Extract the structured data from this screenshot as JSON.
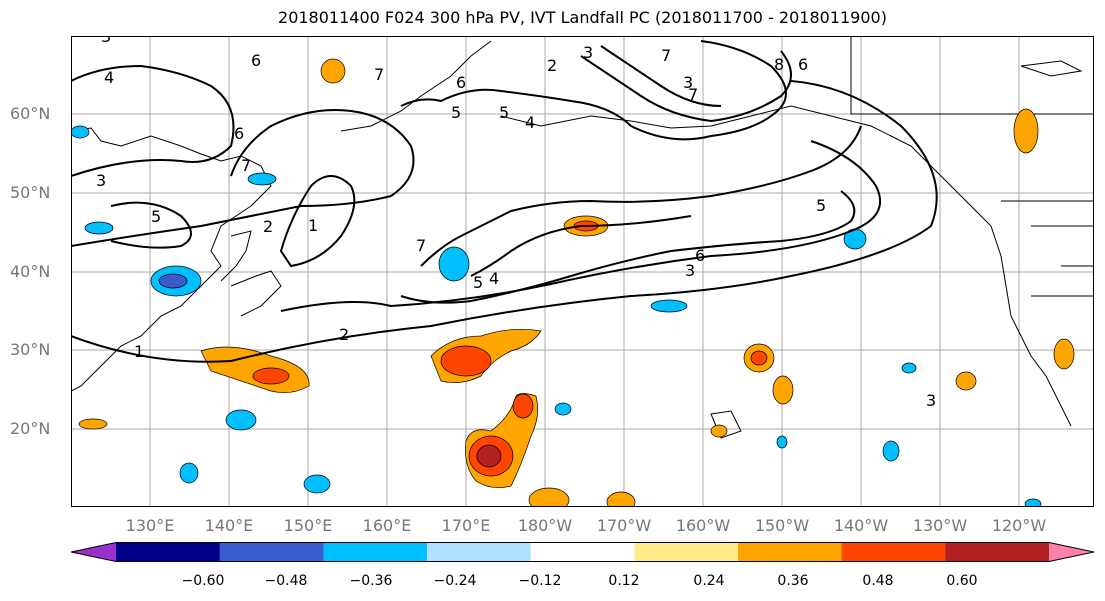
{
  "title": "2018011400 F024 300 hPa PV, IVT Landfall PC (2018011700 - 2018011900)",
  "map": {
    "lat_labels": [
      "60°N",
      "50°N",
      "40°N",
      "30°N",
      "20°N"
    ],
    "lon_labels": [
      "130°E",
      "140°E",
      "150°E",
      "160°E",
      "170°E",
      "180°W",
      "170°W",
      "160°W",
      "150°W",
      "140°W",
      "130°W",
      "120°W"
    ],
    "contour_labels": [
      "3",
      "4",
      "6",
      "7",
      "6",
      "5",
      "5",
      "4",
      "2",
      "3",
      "7",
      "3",
      "7",
      "8",
      "6",
      "6",
      "7",
      "3",
      "5",
      "2",
      "1",
      "7",
      "5",
      "4",
      "6",
      "3",
      "5",
      "2",
      "1",
      "3"
    ]
  },
  "colorbar": {
    "colors": [
      "#9932CC",
      "#00008B",
      "#3A5BCB",
      "#00BFFF",
      "#B0E2FF",
      "#FFFFFF",
      "#FFEC8B",
      "#FFA500",
      "#FF4500",
      "#B22222",
      "#FF82AB"
    ],
    "tick_labels": [
      "−0.60",
      "−0.48",
      "−0.36",
      "−0.24",
      "−0.12",
      "0.12",
      "0.24",
      "0.36",
      "0.48",
      "0.60"
    ]
  }
}
